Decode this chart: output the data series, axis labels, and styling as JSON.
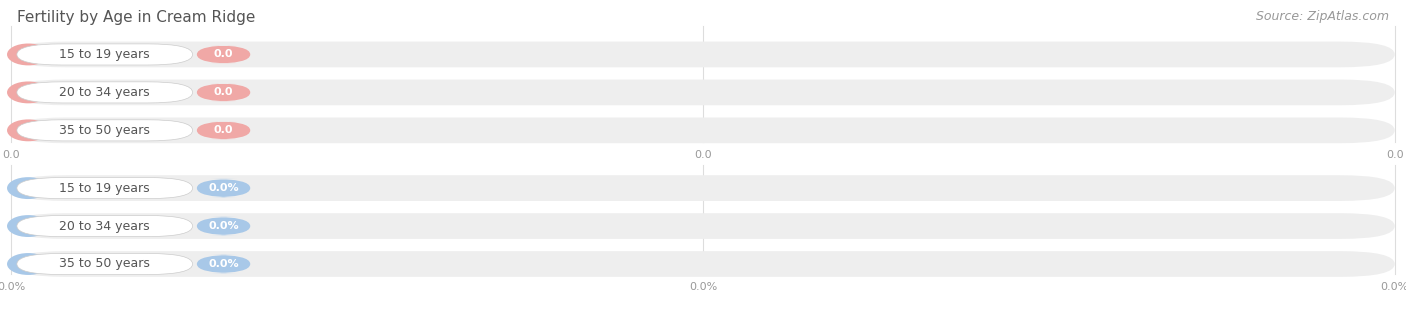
{
  "title": "Fertility by Age in Cream Ridge",
  "source": "Source: ZipAtlas.com",
  "top_group": {
    "labels": [
      "15 to 19 years",
      "20 to 34 years",
      "35 to 50 years"
    ],
    "value_labels": [
      "0.0",
      "0.0",
      "0.0"
    ],
    "bar_color": "#f0a8a6",
    "circle_color": "#f0a8a6"
  },
  "bottom_group": {
    "labels": [
      "15 to 19 years",
      "20 to 34 years",
      "35 to 50 years"
    ],
    "value_labels": [
      "0.0%",
      "0.0%",
      "0.0%"
    ],
    "bar_color": "#a8c8e8",
    "circle_color": "#a8c8e8"
  },
  "tick_labels_top": [
    "0.0",
    "0.0",
    "0.0"
  ],
  "tick_labels_bot": [
    "0.0%",
    "0.0%",
    "0.0%"
  ],
  "fig_bg": "#ffffff",
  "bar_bg_color": "#eeeeee",
  "title_fontsize": 11,
  "source_fontsize": 9,
  "label_fontsize": 9,
  "value_fontsize": 8,
  "tick_fontsize": 8
}
